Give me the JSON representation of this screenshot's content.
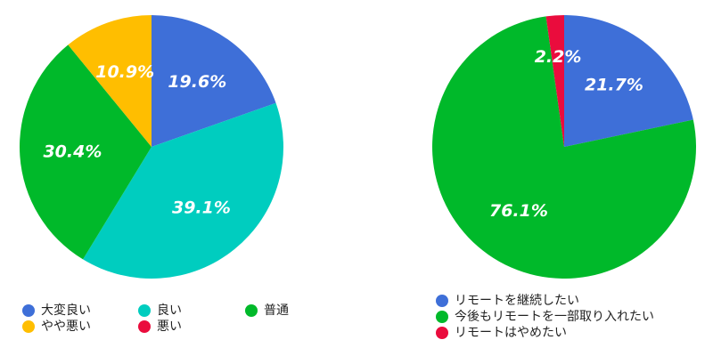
{
  "chart_data": [
    {
      "type": "pie",
      "categories": [
        "大変良い",
        "良い",
        "普通",
        "やや悪い",
        "悪い"
      ],
      "values": [
        19.6,
        39.1,
        30.4,
        10.9,
        0
      ],
      "value_labels": [
        "19.6%",
        "39.1%",
        "30.4%",
        "10.9%",
        null
      ],
      "colors": [
        "#3e6fd8",
        "#00cdbf",
        "#00b92a",
        "#ffbe00",
        "#ea0c3d"
      ]
    },
    {
      "type": "pie",
      "categories": [
        "リモートを継続したい",
        "今後もリモートを一部取り入れたい",
        "リモートはやめたい"
      ],
      "values": [
        21.7,
        76.1,
        2.2
      ],
      "value_labels": [
        "21.7%",
        "76.1%",
        "2.2%"
      ],
      "colors": [
        "#3e6fd8",
        "#00b92a",
        "#ea0c3d"
      ]
    }
  ]
}
